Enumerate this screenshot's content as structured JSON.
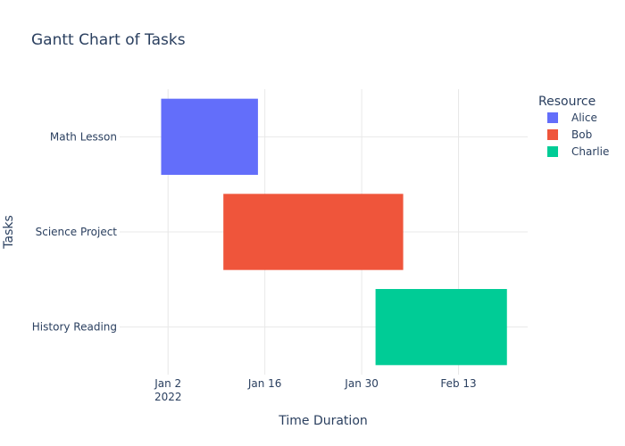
{
  "chart_data": {
    "type": "gantt",
    "title": "Gantt Chart of Tasks",
    "xlabel": "Time Duration",
    "ylabel": "Tasks",
    "x_ticks": [
      {
        "date": "2022-01-02",
        "label": "Jan 2",
        "sublabel": "2022"
      },
      {
        "date": "2022-01-16",
        "label": "Jan 16",
        "sublabel": ""
      },
      {
        "date": "2022-01-30",
        "label": "Jan 30",
        "sublabel": ""
      },
      {
        "date": "2022-02-13",
        "label": "Feb 13",
        "sublabel": ""
      }
    ],
    "xlim": [
      "2021-12-26",
      "2022-02-23"
    ],
    "tasks": [
      {
        "task": "Math Lesson",
        "resource": "Alice",
        "start": "2022-01-01",
        "end": "2022-01-15"
      },
      {
        "task": "Science Project",
        "resource": "Bob",
        "start": "2022-01-10",
        "end": "2022-02-05"
      },
      {
        "task": "History Reading",
        "resource": "Charlie",
        "start": "2022-02-01",
        "end": "2022-02-20"
      }
    ],
    "legend": {
      "title": "Resource",
      "placement": "top-right",
      "entries": [
        {
          "name": "Alice",
          "color": "#636efa"
        },
        {
          "name": "Bob",
          "color": "#ef553b"
        },
        {
          "name": "Charlie",
          "color": "#00cc96"
        }
      ]
    },
    "grid": true
  }
}
